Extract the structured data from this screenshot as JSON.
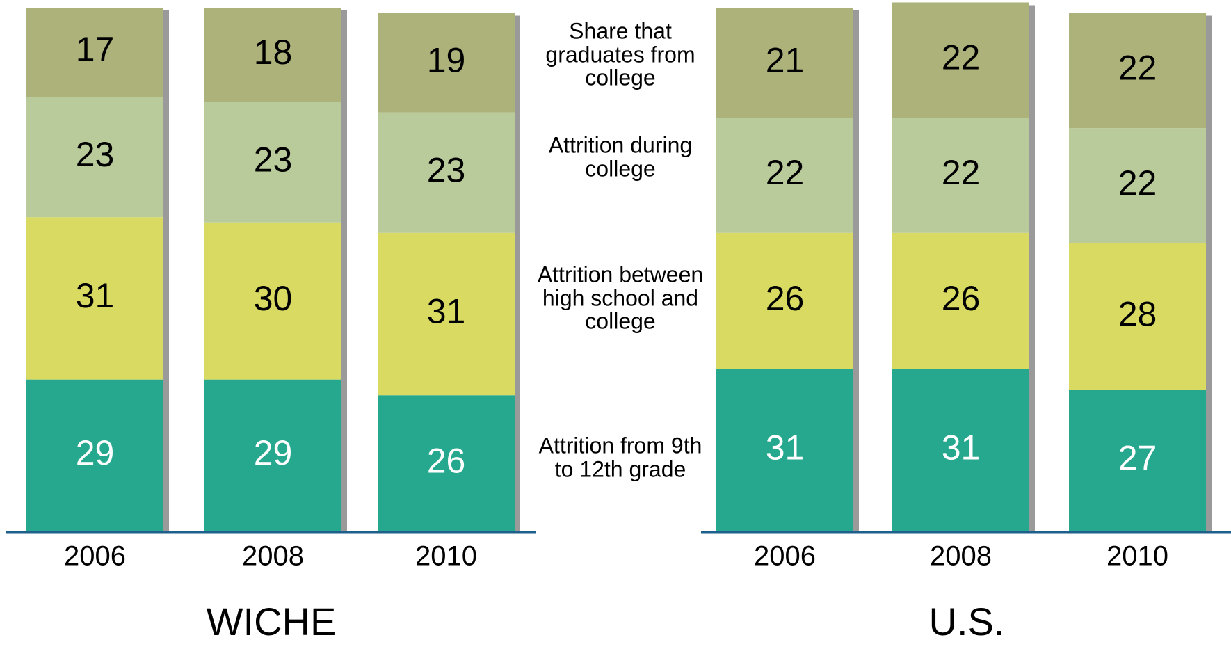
{
  "chart_data": [
    {
      "type": "bar",
      "stacked": true,
      "title": "WICHE",
      "categories": [
        "2006",
        "2008",
        "2010"
      ],
      "ylim": [
        0,
        100
      ],
      "series": [
        {
          "name": "Attrition from 9th to 12th grade",
          "color": "#26a88f",
          "label_color": "#ffffff",
          "values": [
            29,
            29,
            26
          ]
        },
        {
          "name": "Attrition between high school and college",
          "color": "#d9da62",
          "label_color": "#000000",
          "values": [
            31,
            30,
            31
          ]
        },
        {
          "name": "Attrition during college",
          "color": "#b9cb9a",
          "label_color": "#000000",
          "values": [
            23,
            23,
            23
          ]
        },
        {
          "name": "Share that graduates from college",
          "color": "#adb27a",
          "label_color": "#000000",
          "values": [
            17,
            18,
            19
          ]
        }
      ]
    },
    {
      "type": "bar",
      "stacked": true,
      "title": "U.S.",
      "categories": [
        "2006",
        "2008",
        "2010"
      ],
      "ylim": [
        0,
        100
      ],
      "series": [
        {
          "color": "#26a88f",
          "label_color": "#ffffff",
          "values": [
            31,
            31,
            27
          ]
        },
        {
          "color": "#d9da62",
          "label_color": "#000000",
          "values": [
            26,
            26,
            28
          ]
        },
        {
          "color": "#b9cb9a",
          "label_color": "#000000",
          "values": [
            22,
            22,
            22
          ]
        },
        {
          "color": "#adb27a",
          "label_color": "#000000",
          "values": [
            21,
            22,
            22
          ]
        }
      ]
    }
  ]
}
